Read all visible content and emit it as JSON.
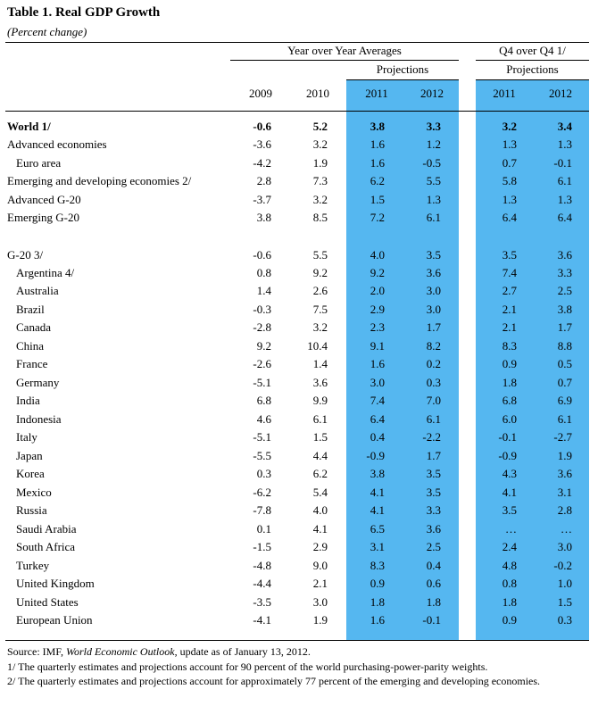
{
  "table": {
    "title": "Table 1. Real GDP Growth",
    "subtitle": "(Percent change)",
    "group_yoy": "Year over Year Averages",
    "group_q4": "Q4 over Q4 1/",
    "projections_label": "Projections",
    "years": [
      "2009",
      "2010",
      "2011",
      "2012"
    ],
    "q4_years": [
      "2011",
      "2012"
    ],
    "colors": {
      "highlight": "#55b7f0"
    },
    "rows": [
      {
        "label": "World 1/",
        "indent": false,
        "bold": true,
        "v": [
          "-0.6",
          "5.2",
          "3.8",
          "3.3",
          "3.2",
          "3.4"
        ]
      },
      {
        "label": "Advanced economies",
        "indent": false,
        "bold": false,
        "v": [
          "-3.6",
          "3.2",
          "1.6",
          "1.2",
          "1.3",
          "1.3"
        ]
      },
      {
        "label": "Euro area",
        "indent": true,
        "bold": false,
        "v": [
          "-4.2",
          "1.9",
          "1.6",
          "-0.5",
          "0.7",
          "-0.1"
        ]
      },
      {
        "label": "Emerging and developing economies 2/",
        "indent": false,
        "bold": false,
        "v": [
          "2.8",
          "7.3",
          "6.2",
          "5.5",
          "5.8",
          "6.1"
        ]
      },
      {
        "label": "Advanced G-20",
        "indent": false,
        "bold": false,
        "v": [
          "-3.7",
          "3.2",
          "1.5",
          "1.3",
          "1.3",
          "1.3"
        ]
      },
      {
        "label": "Emerging G-20",
        "indent": false,
        "bold": false,
        "v": [
          "3.8",
          "8.5",
          "7.2",
          "6.1",
          "6.4",
          "6.4"
        ]
      },
      {
        "label": "G-20 3/",
        "indent": false,
        "bold": false,
        "v": [
          "-0.6",
          "5.5",
          "4.0",
          "3.5",
          "3.5",
          "3.6"
        ]
      },
      {
        "label": "Argentina 4/",
        "indent": true,
        "bold": false,
        "v": [
          "0.8",
          "9.2",
          "9.2",
          "3.6",
          "7.4",
          "3.3"
        ]
      },
      {
        "label": "Australia",
        "indent": true,
        "bold": false,
        "v": [
          "1.4",
          "2.6",
          "2.0",
          "3.0",
          "2.7",
          "2.5"
        ]
      },
      {
        "label": "Brazil",
        "indent": true,
        "bold": false,
        "v": [
          "-0.3",
          "7.5",
          "2.9",
          "3.0",
          "2.1",
          "3.8"
        ]
      },
      {
        "label": "Canada",
        "indent": true,
        "bold": false,
        "v": [
          "-2.8",
          "3.2",
          "2.3",
          "1.7",
          "2.1",
          "1.7"
        ]
      },
      {
        "label": "China",
        "indent": true,
        "bold": false,
        "v": [
          "9.2",
          "10.4",
          "9.1",
          "8.2",
          "8.3",
          "8.8"
        ]
      },
      {
        "label": "France",
        "indent": true,
        "bold": false,
        "v": [
          "-2.6",
          "1.4",
          "1.6",
          "0.2",
          "0.9",
          "0.5"
        ]
      },
      {
        "label": "Germany",
        "indent": true,
        "bold": false,
        "v": [
          "-5.1",
          "3.6",
          "3.0",
          "0.3",
          "1.8",
          "0.7"
        ]
      },
      {
        "label": "India",
        "indent": true,
        "bold": false,
        "v": [
          "6.8",
          "9.9",
          "7.4",
          "7.0",
          "6.8",
          "6.9"
        ]
      },
      {
        "label": "Indonesia",
        "indent": true,
        "bold": false,
        "v": [
          "4.6",
          "6.1",
          "6.4",
          "6.1",
          "6.0",
          "6.1"
        ]
      },
      {
        "label": "Italy",
        "indent": true,
        "bold": false,
        "v": [
          "-5.1",
          "1.5",
          "0.4",
          "-2.2",
          "-0.1",
          "-2.7"
        ]
      },
      {
        "label": "Japan",
        "indent": true,
        "bold": false,
        "v": [
          "-5.5",
          "4.4",
          "-0.9",
          "1.7",
          "-0.9",
          "1.9"
        ]
      },
      {
        "label": "Korea",
        "indent": true,
        "bold": false,
        "v": [
          "0.3",
          "6.2",
          "3.8",
          "3.5",
          "4.3",
          "3.6"
        ]
      },
      {
        "label": "Mexico",
        "indent": true,
        "bold": false,
        "v": [
          "-6.2",
          "5.4",
          "4.1",
          "3.5",
          "4.1",
          "3.1"
        ]
      },
      {
        "label": "Russia",
        "indent": true,
        "bold": false,
        "v": [
          "-7.8",
          "4.0",
          "4.1",
          "3.3",
          "3.5",
          "2.8"
        ]
      },
      {
        "label": "Saudi Arabia",
        "indent": true,
        "bold": false,
        "v": [
          "0.1",
          "4.1",
          "6.5",
          "3.6",
          "…",
          "…"
        ]
      },
      {
        "label": "South Africa",
        "indent": true,
        "bold": false,
        "v": [
          "-1.5",
          "2.9",
          "3.1",
          "2.5",
          "2.4",
          "3.0"
        ]
      },
      {
        "label": "Turkey",
        "indent": true,
        "bold": false,
        "v": [
          "-4.8",
          "9.0",
          "8.3",
          "0.4",
          "4.8",
          "-0.2"
        ]
      },
      {
        "label": "United Kingdom",
        "indent": true,
        "bold": false,
        "v": [
          "-4.4",
          "2.1",
          "0.9",
          "0.6",
          "0.8",
          "1.0"
        ]
      },
      {
        "label": "United States",
        "indent": true,
        "bold": false,
        "v": [
          "-3.5",
          "3.0",
          "1.8",
          "1.8",
          "1.8",
          "1.5"
        ]
      },
      {
        "label": "European Union",
        "indent": true,
        "bold": false,
        "v": [
          "-4.1",
          "1.9",
          "1.6",
          "-0.1",
          "0.9",
          "0.3"
        ]
      }
    ]
  },
  "footnotes": {
    "source_prefix": "Source: IMF, ",
    "source_title": "World Economic Outlook",
    "source_suffix": ", update as of January 13, 2012.",
    "note1": "1/ The quarterly estimates and projections account for 90 percent of the world purchasing-power-parity weights.",
    "note2": "2/ The quarterly estimates and projections account for approximately 77 percent of the emerging and developing economies."
  }
}
